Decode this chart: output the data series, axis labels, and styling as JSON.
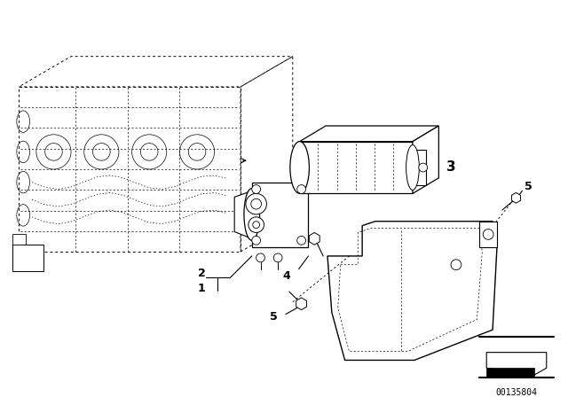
{
  "background_color": "#ffffff",
  "line_color": "#000000",
  "figsize": [
    6.4,
    4.48
  ],
  "dpi": 100,
  "diagram_id": "00135804",
  "part_number_fontsize": 9,
  "label_fontsize": 9
}
